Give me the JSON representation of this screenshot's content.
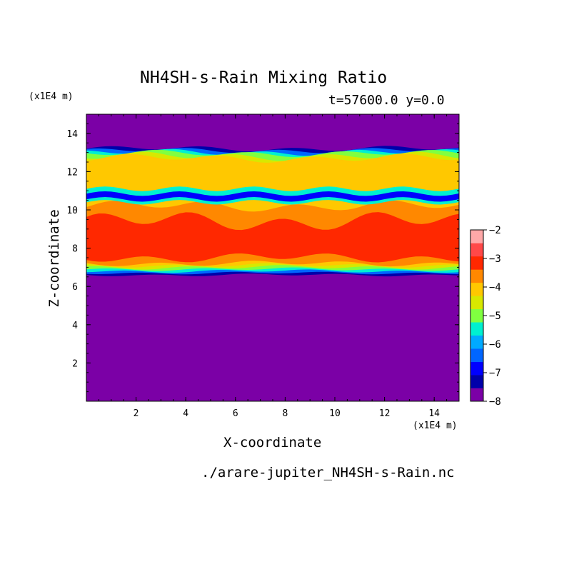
{
  "chart_data": {
    "type": "heatmap",
    "title": "NH4SH-s-Rain Mixing Ratio",
    "subtitle": "t=57600.0 y=0.0",
    "xlabel": "X-coordinate",
    "ylabel": "Z-coordinate",
    "x_unit": "(x1E4 m)",
    "y_unit": "(x1E4 m)",
    "xlim": [
      0,
      15
    ],
    "ylim": [
      0,
      15
    ],
    "x_ticks": [
      2,
      4,
      6,
      8,
      10,
      12,
      14
    ],
    "y_ticks": [
      2,
      4,
      6,
      8,
      10,
      12,
      14
    ],
    "colorbar": {
      "ticks": [
        -2,
        -3,
        -4,
        -5,
        -6,
        -7,
        -8
      ],
      "levels": [
        -8,
        -7.5,
        -7,
        -6.5,
        -6,
        -5.5,
        -5,
        -4.5,
        -4,
        -3.5,
        -3,
        -2.5,
        -2
      ],
      "colors": [
        "#7b00a6",
        "#0000aa",
        "#0000ff",
        "#0066ff",
        "#00aaff",
        "#00f0d0",
        "#80ff40",
        "#d8e800",
        "#ffc800",
        "#ff8800",
        "#ff2800",
        "#ff4848",
        "#ffa8a8"
      ]
    },
    "layers": [
      {
        "bottom": 6.6,
        "top": 13.2,
        "level": -7.5,
        "amp": 0.1
      },
      {
        "bottom": 6.7,
        "top": 13.1,
        "level": -6.5,
        "amp": 0.1
      },
      {
        "bottom": 6.8,
        "top": 13.0,
        "level": -5.5,
        "amp": 0.12
      },
      {
        "bottom": 6.9,
        "top": 12.95,
        "level": -5.0,
        "amp": 0.12
      },
      {
        "bottom": 7.0,
        "top": 12.8,
        "level": -4.5,
        "amp": 0.15
      },
      {
        "bottom": 7.1,
        "top": 12.7,
        "level": -4.0,
        "amp": 0.15
      },
      {
        "bottom": 7.2,
        "top": 10.2,
        "level": -3.5,
        "amp": 0.2
      },
      {
        "bottom": 7.5,
        "top": 9.4,
        "level": -3.0,
        "amp": 0.35
      }
    ],
    "bands": [
      {
        "bottom": 10.4,
        "top": 11.1,
        "level": -5.5
      },
      {
        "bottom": 10.55,
        "top": 10.85,
        "level": -7.0
      }
    ]
  },
  "source_file": "./arare-jupiter_NH4SH-s-Rain.nc"
}
